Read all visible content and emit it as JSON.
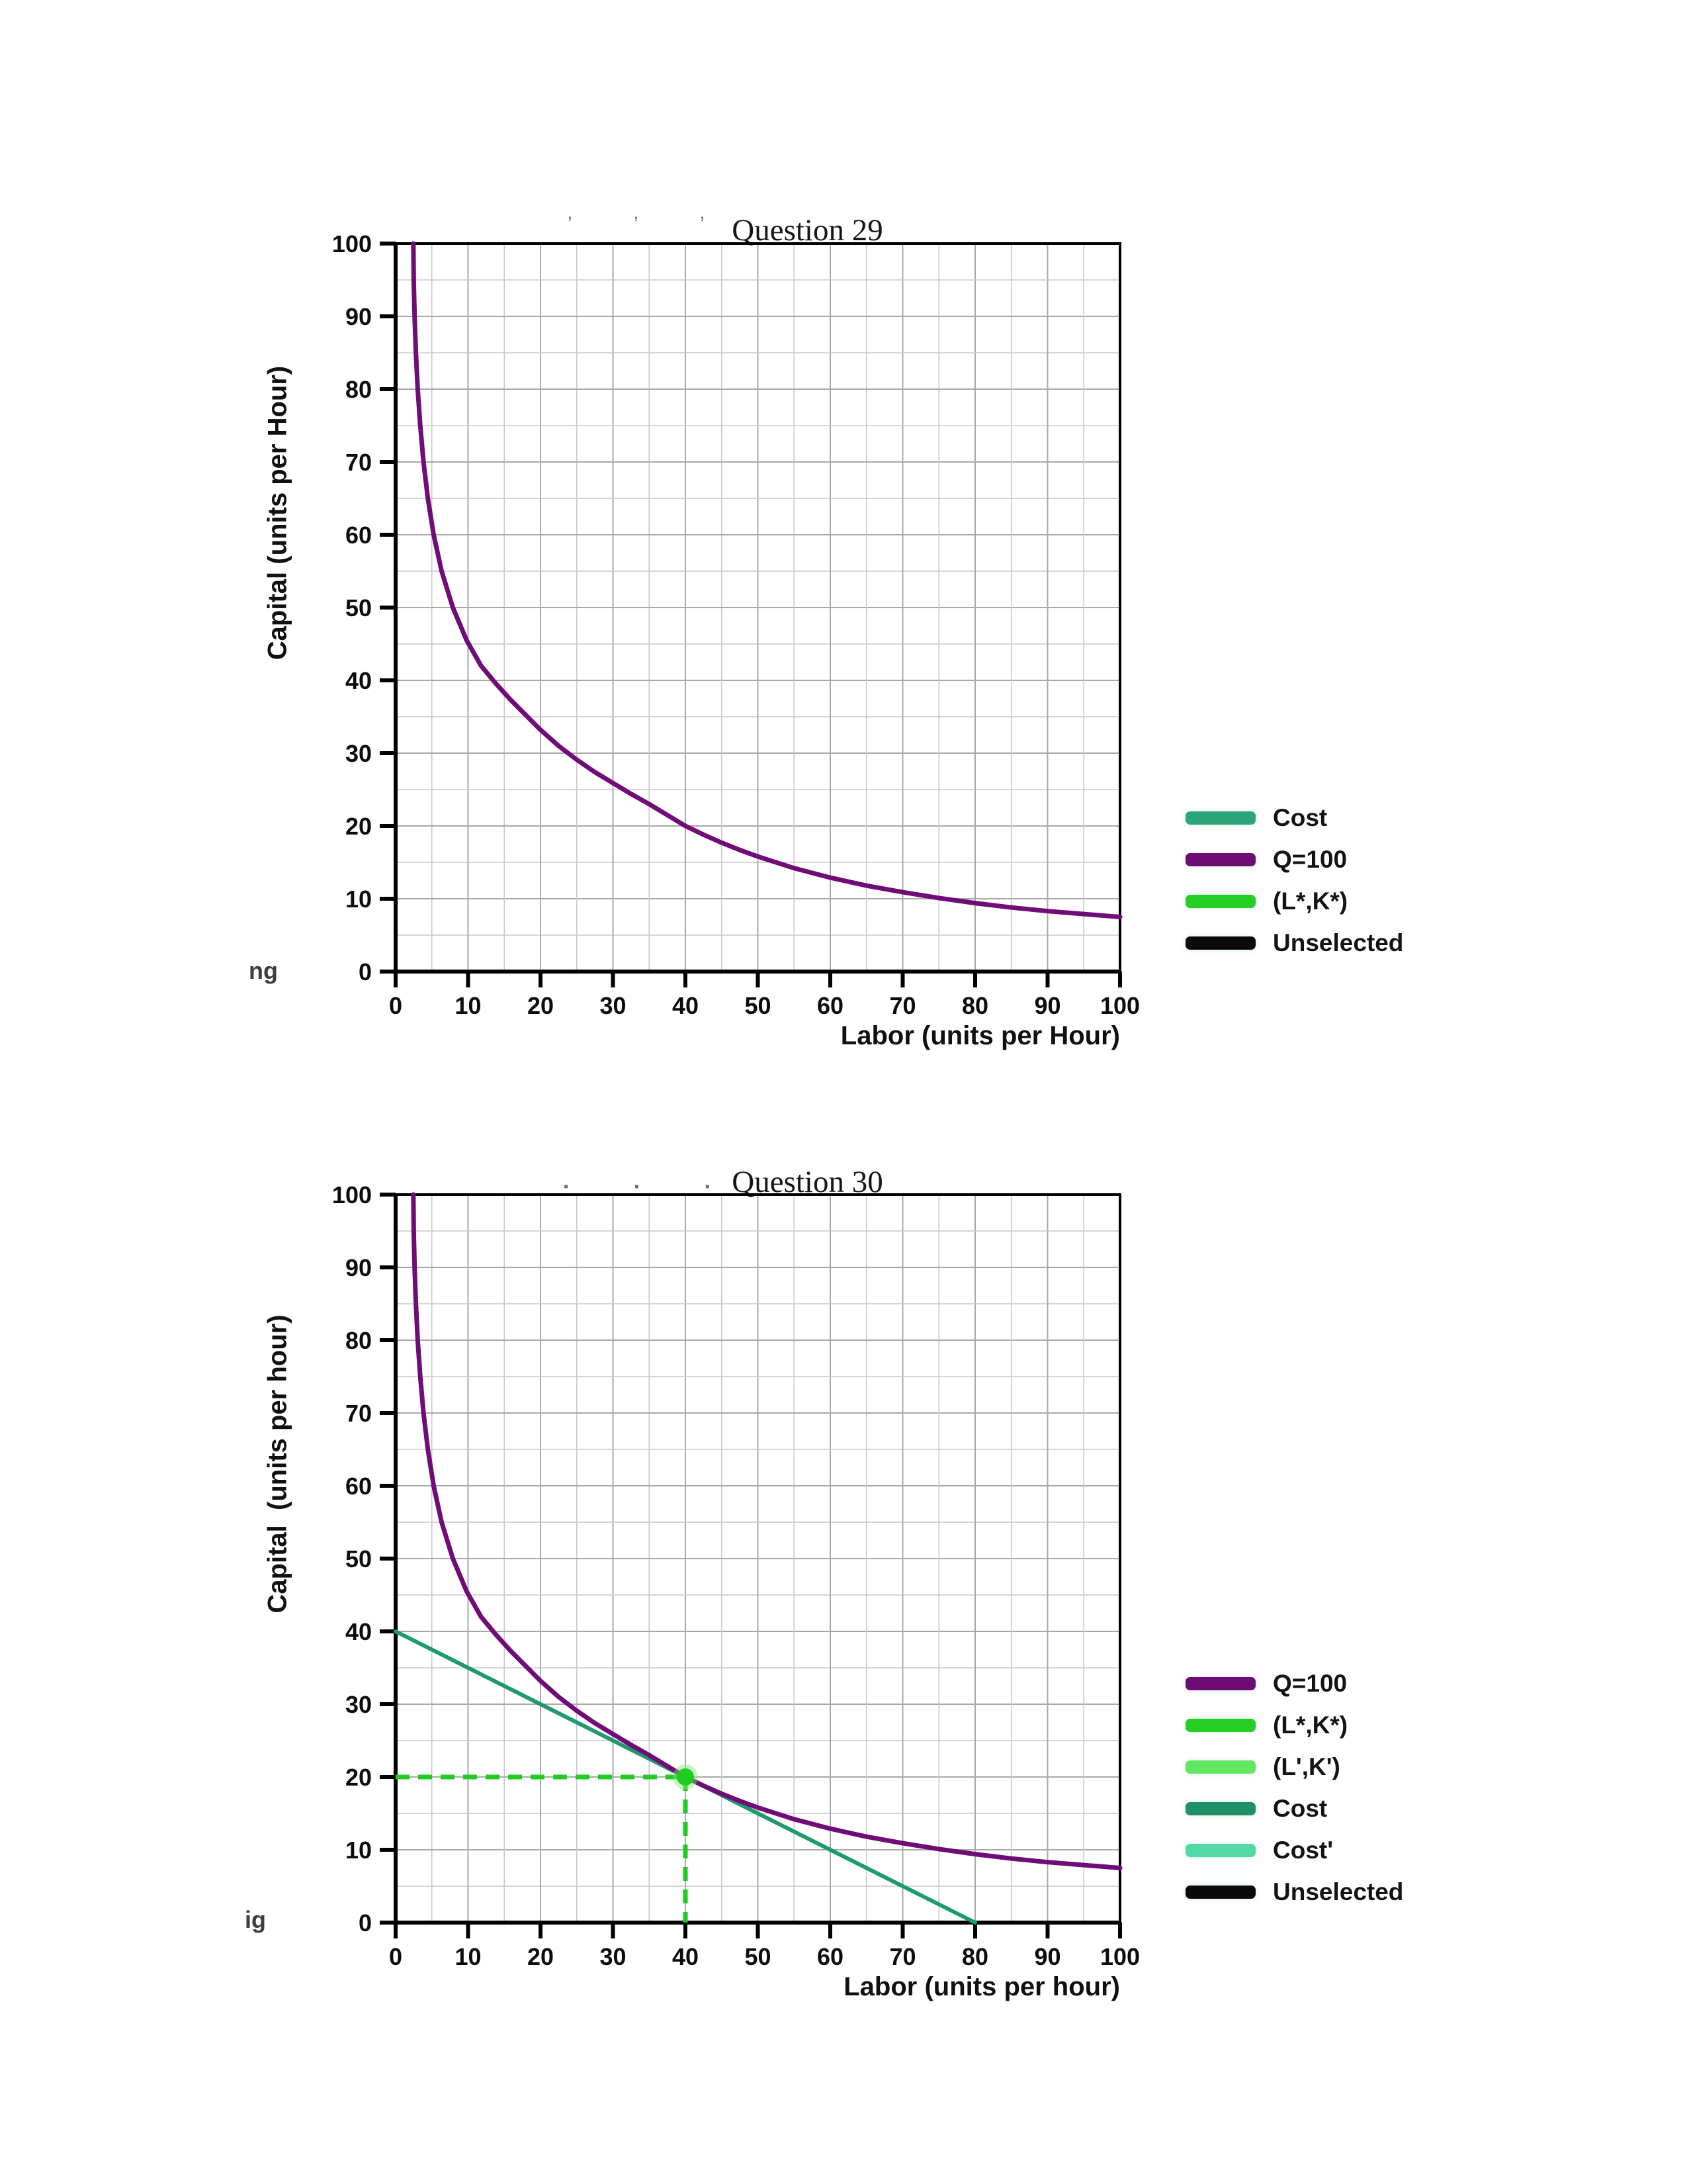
{
  "page": {
    "background": "#ffffff"
  },
  "charts": [
    {
      "title": "Question 29",
      "top_remnant": "’    ’    ’",
      "ylabel": "Capital (units per Hour)",
      "xlabel": "Labor (units per Hour)",
      "corner_fragment": "ng",
      "legend": [
        {
          "label": "Cost",
          "color": "#2BA47A"
        },
        {
          "label": "Q=100",
          "color": "#6E0B75"
        },
        {
          "label": "(L*,K*)",
          "color": "#25CE25"
        },
        {
          "label": "Unselected",
          "color": "#0A0A0A"
        }
      ]
    },
    {
      "title": "Question 30",
      "top_remnant": "▪     ▪     ▪",
      "ylabel": "Capital  (units per hour)",
      "xlabel": "Labor (units per hour)",
      "corner_fragment": "ig",
      "legend": [
        {
          "label": "Q=100",
          "color": "#6E0B75"
        },
        {
          "label": "(L*,K*)",
          "color": "#25CE25"
        },
        {
          "label": "(L',K')",
          "color": "#63E763"
        },
        {
          "label": "Cost",
          "color": "#1F8F68"
        },
        {
          "label": "Cost'",
          "color": "#54D9A6"
        },
        {
          "label": "Unselected",
          "color": "#0A0A0A"
        }
      ]
    }
  ],
  "chart_data": [
    {
      "type": "line",
      "title": "Question 29",
      "xlabel": "Labor (units per Hour)",
      "ylabel": "Capital (units per Hour)",
      "xlim": [
        0,
        100
      ],
      "ylim": [
        0,
        100
      ],
      "x_ticks": [
        0,
        10,
        20,
        30,
        40,
        50,
        60,
        70,
        80,
        90,
        100
      ],
      "y_ticks": [
        0,
        10,
        20,
        30,
        40,
        50,
        60,
        70,
        80,
        90,
        100
      ],
      "grid": true,
      "grid_step": 5,
      "legend_position": "right",
      "legend_entries": [
        "Cost",
        "Q=100",
        "(L*,K*)",
        "Unselected"
      ],
      "series": [
        {
          "name": "Q=100",
          "color": "#700C78",
          "width": 7,
          "points": [
            [
              2.45,
              100
            ],
            [
              2.5,
              95
            ],
            [
              2.62,
              90
            ],
            [
              2.8,
              85
            ],
            [
              3.05,
              80
            ],
            [
              3.4,
              75
            ],
            [
              3.85,
              70
            ],
            [
              4.45,
              65
            ],
            [
              5.25,
              60
            ],
            [
              6.35,
              55
            ],
            [
              7.9,
              50
            ],
            [
              9.8,
              45.5
            ],
            [
              11.8,
              42
            ],
            [
              13.8,
              39.6
            ],
            [
              15.8,
              37.4
            ],
            [
              17.8,
              35.4
            ],
            [
              20,
              33.2
            ],
            [
              22.5,
              31
            ],
            [
              25,
              29.1
            ],
            [
              27.5,
              27.4
            ],
            [
              30,
              25.9
            ],
            [
              32.5,
              24.4
            ],
            [
              35,
              23
            ],
            [
              37.5,
              21.5
            ],
            [
              40,
              20
            ],
            [
              42.5,
              18.8
            ],
            [
              45,
              17.7
            ],
            [
              47.5,
              16.7
            ],
            [
              50,
              15.8
            ],
            [
              55,
              14.2
            ],
            [
              60,
              12.9
            ],
            [
              65,
              11.8
            ],
            [
              70,
              10.9
            ],
            [
              75,
              10.1
            ],
            [
              80,
              9.4
            ],
            [
              85,
              8.8
            ],
            [
              90,
              8.3
            ],
            [
              95,
              7.9
            ],
            [
              100,
              7.5
            ]
          ]
        }
      ]
    },
    {
      "type": "line",
      "title": "Question 30",
      "xlabel": "Labor (units per hour)",
      "ylabel": "Capital (units per hour)",
      "xlim": [
        0,
        100
      ],
      "ylim": [
        0,
        100
      ],
      "x_ticks": [
        0,
        10,
        20,
        30,
        40,
        50,
        60,
        70,
        80,
        90,
        100
      ],
      "y_ticks": [
        0,
        10,
        20,
        30,
        40,
        50,
        60,
        70,
        80,
        90,
        100
      ],
      "grid": true,
      "grid_step": 5,
      "legend_position": "right",
      "legend_entries": [
        "Q=100",
        "(L*,K*)",
        "(L',K')",
        "Cost",
        "Cost'",
        "Unselected"
      ],
      "series": [
        {
          "name": "Cost",
          "color": "#1E9A6E",
          "width": 6,
          "points": [
            [
              0,
              40
            ],
            [
              80,
              0
            ]
          ]
        },
        {
          "name": "Q=100",
          "color": "#700C78",
          "width": 7,
          "points": [
            [
              2.45,
              100
            ],
            [
              2.5,
              95
            ],
            [
              2.62,
              90
            ],
            [
              2.8,
              85
            ],
            [
              3.05,
              80
            ],
            [
              3.4,
              75
            ],
            [
              3.85,
              70
            ],
            [
              4.45,
              65
            ],
            [
              5.25,
              60
            ],
            [
              6.35,
              55
            ],
            [
              7.9,
              50
            ],
            [
              9.8,
              45.5
            ],
            [
              11.8,
              42
            ],
            [
              13.8,
              39.6
            ],
            [
              15.8,
              37.4
            ],
            [
              17.8,
              35.4
            ],
            [
              20,
              33.2
            ],
            [
              22.5,
              31
            ],
            [
              25,
              29.1
            ],
            [
              27.5,
              27.4
            ],
            [
              30,
              25.9
            ],
            [
              32.5,
              24.4
            ],
            [
              35,
              23
            ],
            [
              37.5,
              21.5
            ],
            [
              40,
              20
            ],
            [
              42.5,
              18.8
            ],
            [
              45,
              17.7
            ],
            [
              47.5,
              16.7
            ],
            [
              50,
              15.8
            ],
            [
              55,
              14.2
            ],
            [
              60,
              12.9
            ],
            [
              65,
              11.8
            ],
            [
              70,
              10.9
            ],
            [
              75,
              10.1
            ],
            [
              80,
              9.4
            ],
            [
              85,
              8.8
            ],
            [
              90,
              8.3
            ],
            [
              95,
              7.9
            ],
            [
              100,
              7.5
            ]
          ]
        }
      ],
      "guides": [
        {
          "name": "K-star-guide",
          "color": "#1FCC1F",
          "width": 7,
          "dash": "21 13",
          "points": [
            [
              0,
              20
            ],
            [
              40,
              20
            ]
          ]
        },
        {
          "name": "L-star-guide",
          "color": "#1FCC1F",
          "width": 7,
          "dash": "21 13",
          "points": [
            [
              40,
              20
            ],
            [
              40,
              0
            ]
          ]
        }
      ],
      "point": {
        "name": "(L*,K*)",
        "x": 40,
        "y": 20,
        "color": "#1FCC1F",
        "halo": "#7BEB7B"
      }
    }
  ]
}
